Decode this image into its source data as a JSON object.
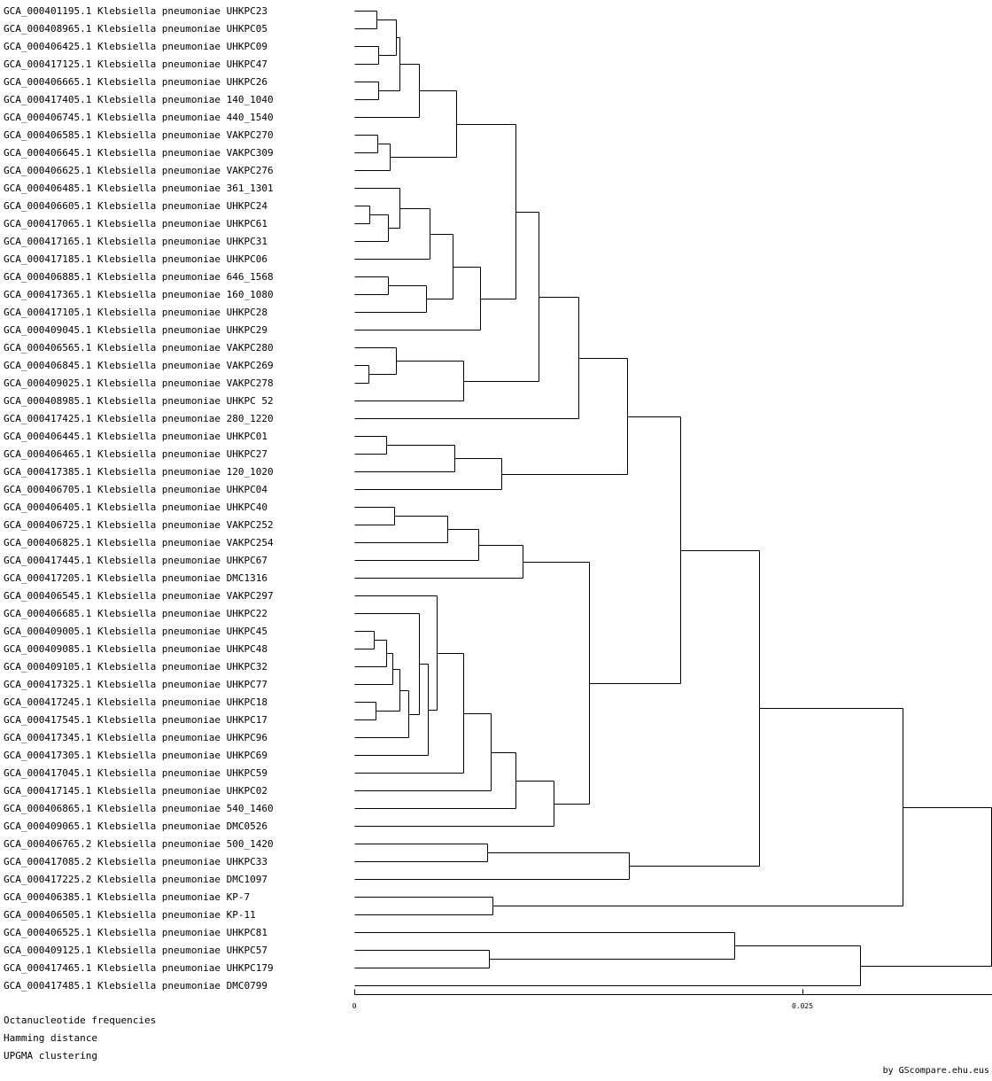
{
  "leaves": [
    "GCA_000401195.1 Klebsiella pneumoniae UHKPC23",
    "GCA_000408965.1 Klebsiella pneumoniae UHKPC05",
    "GCA_000406425.1 Klebsiella pneumoniae UHKPC09",
    "GCA_000417125.1 Klebsiella pneumoniae UHKPC47",
    "GCA_000406665.1 Klebsiella pneumoniae UHKPC26",
    "GCA_000417405.1 Klebsiella pneumoniae 140_1040",
    "GCA_000406745.1 Klebsiella pneumoniae 440_1540",
    "GCA_000406585.1 Klebsiella pneumoniae VAKPC270",
    "GCA_000406645.1 Klebsiella pneumoniae VAKPC309",
    "GCA_000406625.1 Klebsiella pneumoniae VAKPC276",
    "GCA_000406485.1 Klebsiella pneumoniae 361_1301",
    "GCA_000406605.1 Klebsiella pneumoniae UHKPC24",
    "GCA_000417065.1 Klebsiella pneumoniae UHKPC61",
    "GCA_000417165.1 Klebsiella pneumoniae UHKPC31",
    "GCA_000417185.1 Klebsiella pneumoniae UHKPC06",
    "GCA_000406885.1 Klebsiella pneumoniae 646_1568",
    "GCA_000417365.1 Klebsiella pneumoniae 160_1080",
    "GCA_000417105.1 Klebsiella pneumoniae UHKPC28",
    "GCA_000409045.1 Klebsiella pneumoniae UHKPC29",
    "GCA_000406565.1 Klebsiella pneumoniae VAKPC280",
    "GCA_000406845.1 Klebsiella pneumoniae VAKPC269",
    "GCA_000409025.1 Klebsiella pneumoniae VAKPC278",
    "GCA_000408985.1 Klebsiella pneumoniae UHKPC 52",
    "GCA_000417425.1 Klebsiella pneumoniae 280_1220",
    "GCA_000406445.1 Klebsiella pneumoniae UHKPC01",
    "GCA_000406465.1 Klebsiella pneumoniae UHKPC27",
    "GCA_000417385.1 Klebsiella pneumoniae 120_1020",
    "GCA_000406705.1 Klebsiella pneumoniae UHKPC04",
    "GCA_000406405.1 Klebsiella pneumoniae UHKPC40",
    "GCA_000406725.1 Klebsiella pneumoniae VAKPC252",
    "GCA_000406825.1 Klebsiella pneumoniae VAKPC254",
    "GCA_000417445.1 Klebsiella pneumoniae UHKPC67",
    "GCA_000417205.1 Klebsiella pneumoniae DMC1316",
    "GCA_000406545.1 Klebsiella pneumoniae VAKPC297",
    "GCA_000406685.1 Klebsiella pneumoniae UHKPC22",
    "GCA_000409005.1 Klebsiella pneumoniae UHKPC45",
    "GCA_000409085.1 Klebsiella pneumoniae UHKPC48",
    "GCA_000409105.1 Klebsiella pneumoniae UHKPC32",
    "GCA_000417325.1 Klebsiella pneumoniae UHKPC77",
    "GCA_000417245.1 Klebsiella pneumoniae UHKPC18",
    "GCA_000417545.1 Klebsiella pneumoniae UHKPC17",
    "GCA_000417345.1 Klebsiella pneumoniae UHKPC96",
    "GCA_000417305.1 Klebsiella pneumoniae UHKPC69",
    "GCA_000417045.1 Klebsiella pneumoniae UHKPC59",
    "GCA_000417145.1 Klebsiella pneumoniae UHKPC02",
    "GCA_000406865.1 Klebsiella pneumoniae 540_1460",
    "GCA_000409065.1 Klebsiella pneumoniae DMC0526",
    "GCA_000406765.2 Klebsiella pneumoniae 500_1420",
    "GCA_000417085.2 Klebsiella pneumoniae UHKPC33",
    "GCA_000417225.2 Klebsiella pneumoniae DMC1097",
    "GCA_000406385.1 Klebsiella pneumoniae KP-7",
    "GCA_000406505.1 Klebsiella pneumoniae KP-11",
    "GCA_000406525.1 Klebsiella pneumoniae UHKPC81",
    "GCA_000409125.1 Klebsiella pneumoniae UHKPC57",
    "GCA_000417465.1 Klebsiella pneumoniae UHKPC179",
    "GCA_000417485.1 Klebsiella pneumoniae DMC0799"
  ],
  "merges": [
    [
      0,
      1,
      0.00125
    ],
    [
      2,
      3,
      0.00135
    ],
    [
      4,
      5,
      0.00135
    ],
    [
      -1,
      -2,
      0.0023
    ],
    [
      -4,
      -3,
      0.0025
    ],
    [
      -5,
      6,
      0.0036
    ],
    [
      7,
      8,
      0.0013
    ],
    [
      -7,
      9,
      0.002
    ],
    [
      -6,
      -8,
      0.0057
    ],
    [
      11,
      12,
      0.00085
    ],
    [
      -10,
      13,
      0.0019
    ],
    [
      10,
      -11,
      0.0025
    ],
    [
      -12,
      14,
      0.0042
    ],
    [
      15,
      16,
      0.0019
    ],
    [
      -14,
      17,
      0.004
    ],
    [
      -13,
      -15,
      0.0055
    ],
    [
      -16,
      18,
      0.007
    ],
    [
      -9,
      -17,
      0.009
    ],
    [
      20,
      21,
      0.0008
    ],
    [
      19,
      -19,
      0.0023
    ],
    [
      -20,
      22,
      0.0061
    ],
    [
      -18,
      -21,
      0.0103
    ],
    [
      -22,
      23,
      0.0125
    ],
    [
      24,
      25,
      0.0018
    ],
    [
      -24,
      26,
      0.0056
    ],
    [
      -25,
      27,
      0.0082
    ],
    [
      -23,
      -26,
      0.0152
    ],
    [
      28,
      29,
      0.0022
    ],
    [
      -28,
      30,
      0.0052
    ],
    [
      -29,
      31,
      0.0069
    ],
    [
      -30,
      32,
      0.0094
    ],
    [
      35,
      36,
      0.0011
    ],
    [
      -32,
      37,
      0.0018
    ],
    [
      -33,
      38,
      0.0021
    ],
    [
      39,
      40,
      0.0012
    ],
    [
      -34,
      -35,
      0.0025
    ],
    [
      -36,
      41,
      0.003
    ],
    [
      34,
      -37,
      0.0036
    ],
    [
      -38,
      42,
      0.0041
    ],
    [
      33,
      -39,
      0.0046
    ],
    [
      -40,
      43,
      0.0061
    ],
    [
      -41,
      44,
      0.0076
    ],
    [
      -42,
      45,
      0.009
    ],
    [
      -43,
      46,
      0.0111
    ],
    [
      -31,
      -44,
      0.0131
    ],
    [
      -27,
      -45,
      0.0182
    ],
    [
      47,
      48,
      0.0074
    ],
    [
      -47,
      49,
      0.0153
    ],
    [
      -46,
      -48,
      0.0226
    ],
    [
      50,
      51,
      0.0077
    ],
    [
      -49,
      -50,
      0.0306
    ],
    [
      53,
      54,
      0.0075
    ],
    [
      52,
      -52,
      0.0212
    ],
    [
      -53,
      55,
      0.0282
    ],
    [
      -51,
      -54,
      0.0355
    ]
  ],
  "scale": {
    "ticks": [
      {
        "value": 0,
        "label": "0"
      },
      {
        "value": 0.025,
        "label": "0.025"
      }
    ]
  },
  "footer": {
    "frequencies": "Octanucleotide frequencies",
    "distance": "Hamming distance",
    "clustering": "UPGMA clustering"
  },
  "credit": "by GScompare.ehu.eus"
}
